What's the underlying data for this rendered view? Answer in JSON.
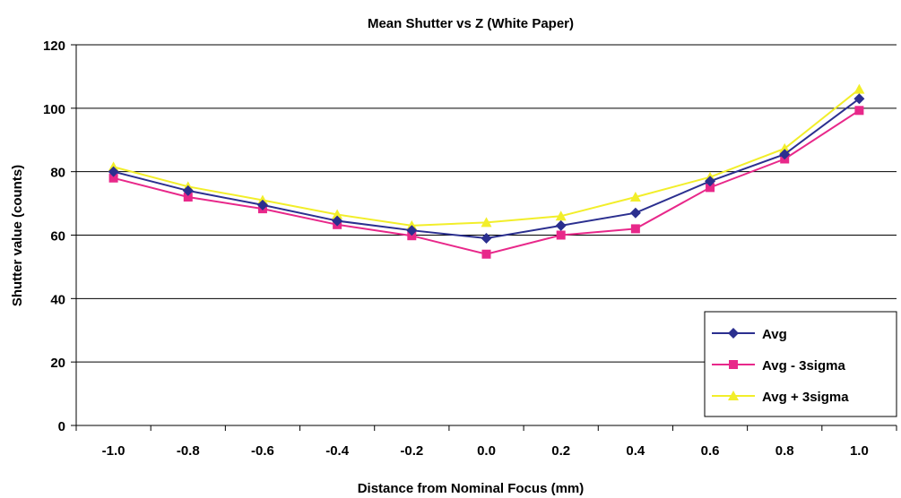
{
  "chart_data": {
    "type": "line",
    "title": "Mean Shutter vs Z (White Paper)",
    "xlabel": "Distance from Nominal Focus (mm)",
    "ylabel": "Shutter value (counts)",
    "categories": [
      "-1.0",
      "-0.8",
      "-0.6",
      "-0.4",
      "-0.2",
      "0.0",
      "0.2",
      "0.4",
      "0.6",
      "0.8",
      "1.0"
    ],
    "ylim": [
      0,
      120
    ],
    "yticks": [
      0,
      20,
      40,
      60,
      80,
      100,
      120
    ],
    "grid": true,
    "legend_position": "bottom-right",
    "series": [
      {
        "name": "Avg",
        "color": "#2b2f8f",
        "marker": "diamond",
        "values": [
          80,
          74,
          69.5,
          64.5,
          61.5,
          59,
          63,
          67,
          77,
          85.5,
          103
        ]
      },
      {
        "name": "Avg - 3sigma",
        "color": "#e8288a",
        "marker": "square",
        "values": [
          78,
          72,
          68.3,
          63.3,
          59.8,
          54,
          60,
          62,
          75,
          84,
          99.3
        ]
      },
      {
        "name": "Avg + 3sigma",
        "color": "#f2ee2a",
        "marker": "triangle",
        "values": [
          81.5,
          75.3,
          71,
          66.5,
          63,
          64,
          66,
          72,
          78.3,
          87.3,
          106
        ]
      }
    ]
  }
}
